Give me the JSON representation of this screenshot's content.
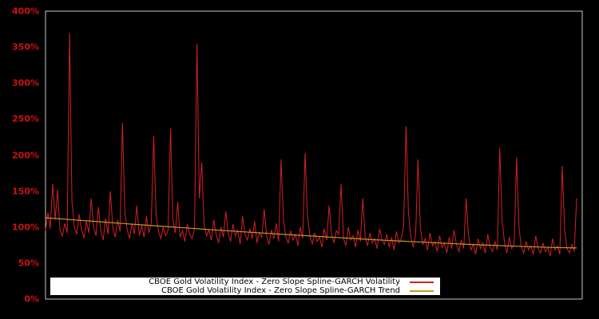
{
  "chart_data": {
    "type": "line",
    "title": "",
    "xlabel": "",
    "ylabel": "",
    "ylim": [
      0,
      400
    ],
    "grid": false,
    "background_color": "#000000",
    "border_color": "#c8c8c8",
    "axis_label_color": "#cc1111",
    "legend_position": "bottom-left-inside",
    "legend_background": "#ffffff",
    "legend_text_color": "#000000",
    "y_ticks": [
      {
        "value": 0,
        "label": "0%"
      },
      {
        "value": 50,
        "label": "50%"
      },
      {
        "value": 100,
        "label": "100%"
      },
      {
        "value": 150,
        "label": "150%"
      },
      {
        "value": 200,
        "label": "200%"
      },
      {
        "value": 250,
        "label": "250%"
      },
      {
        "value": 300,
        "label": "300%"
      },
      {
        "value": 350,
        "label": "350%"
      },
      {
        "value": 400,
        "label": "400%"
      }
    ],
    "series": [
      {
        "name": "CBOE Gold Volatility Index - Zero Slope Spline-GARCH Volatility",
        "color": "#d41f28",
        "unit": "%",
        "values": [
          95,
          120,
          98,
          160,
          110,
          152,
          96,
          88,
          105,
          92,
          370,
          135,
          100,
          90,
          118,
          96,
          85,
          108,
          92,
          140,
          100,
          88,
          128,
          95,
          82,
          112,
          90,
          150,
          98,
          86,
          110,
          94,
          245,
          120,
          96,
          84,
          105,
          90,
          130,
          88,
          102,
          86,
          115,
          92,
          105,
          227,
          118,
          94,
          84,
          100,
          88,
          96,
          237,
          110,
          92,
          135,
          86,
          95,
          80,
          104,
          90,
          84,
          98,
          355,
          140,
          190,
          102,
          88,
          96,
          82,
          110,
          90,
          78,
          100,
          86,
          122,
          92,
          80,
          104,
          88,
          96,
          76,
          115,
          90,
          82,
          98,
          84,
          108,
          78,
          92,
          86,
          125,
          88,
          76,
          96,
          84,
          105,
          80,
          194,
          110,
          86,
          78,
          95,
          82,
          90,
          74,
          100,
          84,
          203,
          115,
          88,
          76,
          92,
          80,
          86,
          72,
          98,
          82,
          130,
          90,
          78,
          95,
          90,
          160,
          84,
          74,
          100,
          82,
          88,
          72,
          96,
          80,
          140,
          86,
          74,
          92,
          78,
          84,
          70,
          98,
          82,
          76,
          90,
          72,
          86,
          68,
          94,
          78,
          84,
          100,
          240,
          120,
          86,
          72,
          90,
          194,
          98,
          76,
          84,
          68,
          92,
          74,
          80,
          66,
          88,
          72,
          78,
          64,
          86,
          70,
          96,
          76,
          66,
          82,
          70,
          140,
          88,
          68,
          76,
          62,
          84,
          70,
          78,
          64,
          90,
          72,
          66,
          80,
          68,
          210,
          110,
          78,
          64,
          86,
          70,
          76,
          197,
          100,
          72,
          64,
          80,
          68,
          74,
          62,
          88,
          70,
          64,
          78,
          66,
          72,
          60,
          84,
          68,
          74,
          62,
          185,
          95,
          70,
          64,
          76,
          66,
          140
        ]
      },
      {
        "name": "CBOE Gold Volatility Index - Zero Slope Spline-GARCH Trend",
        "color": "#c49a26",
        "unit": "%",
        "values": [
          113,
          110.5,
          108,
          105.5,
          103.1,
          100.7,
          98.4,
          96.1,
          93.9,
          91.7,
          89.6,
          87.6,
          85.6,
          83.7,
          81.8,
          80.1,
          78.4,
          76.8,
          75.3,
          74,
          72.8,
          71.7,
          71
        ]
      }
    ]
  }
}
